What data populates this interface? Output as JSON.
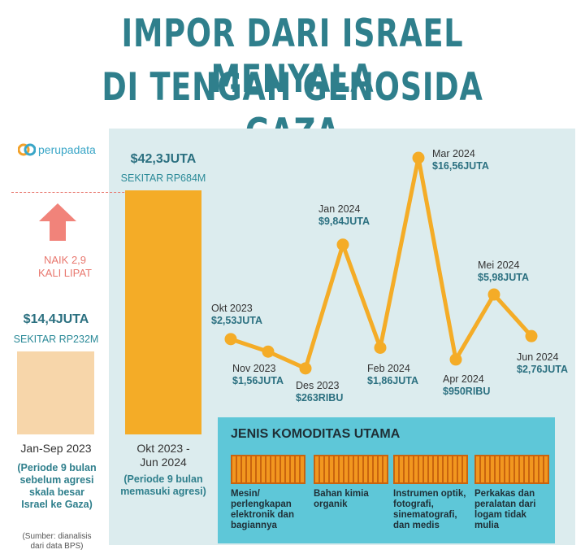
{
  "title_line1": "IMPOR DARI ISRAEL MENYALA",
  "title_line2": "DI TENGAH GENOSIDA GAZA",
  "logo": "perupadata",
  "increase_label_1": "NAIK 2,9",
  "increase_label_2": "KALI LIPAT",
  "left": {
    "value": "$14,4JUTA",
    "approx": "SEKITAR RP232M",
    "period": "Jan-Sep 2023",
    "note": "(Periode 9 bulan sebelum agresi skala besar Israel ke Gaza)"
  },
  "right": {
    "value": "$42,3JUTA",
    "approx": "SEKITAR RP684M",
    "period_1": "Okt 2023 -",
    "period_2": "Jun 2024",
    "note": "(Periode 9 bulan memasuki agresi)"
  },
  "source": "(Sumber: dianalisis dari data BPS)",
  "commodities": {
    "title": "JENIS KOMODITAS UTAMA",
    "items": [
      "Mesin/ perlengkapan elektronik dan bagiannya",
      "Bahan kimia organik",
      "Instrumen optik, fotografi, sinematografi, dan medis",
      "Perkakas dan peralatan dari logam tidak mulia"
    ]
  },
  "colors": {
    "accent": "#f4ac27",
    "teal": "#2f7f8c",
    "panel": "#dcecee"
  },
  "chart_data": [
    {
      "type": "bar",
      "categories": [
        "Jan-Sep 2023",
        "Okt 2023 - Jun 2024"
      ],
      "values": [
        14.4,
        42.3
      ],
      "value_labels": [
        "$14,4JUTA",
        "$42,3JUTA"
      ]
    },
    {
      "type": "line",
      "x": [
        "Okt 2023",
        "Nov 2023",
        "Des 2023",
        "Jan 2024",
        "Feb 2024",
        "Mar 2024",
        "Apr 2024",
        "Mei 2024",
        "Jun 2024"
      ],
      "values": [
        2.53,
        1.56,
        0.263,
        9.84,
        1.86,
        16.56,
        0.95,
        5.98,
        2.76
      ],
      "value_labels": [
        "$2,53JUTA",
        "$1,56JUTA",
        "$263RIBU",
        "$9,84JUTA",
        "$1,86JUTA",
        "$16,56JUTA",
        "$950RIBU",
        "$5,98JUTA",
        "$2,76JUTA"
      ]
    }
  ]
}
